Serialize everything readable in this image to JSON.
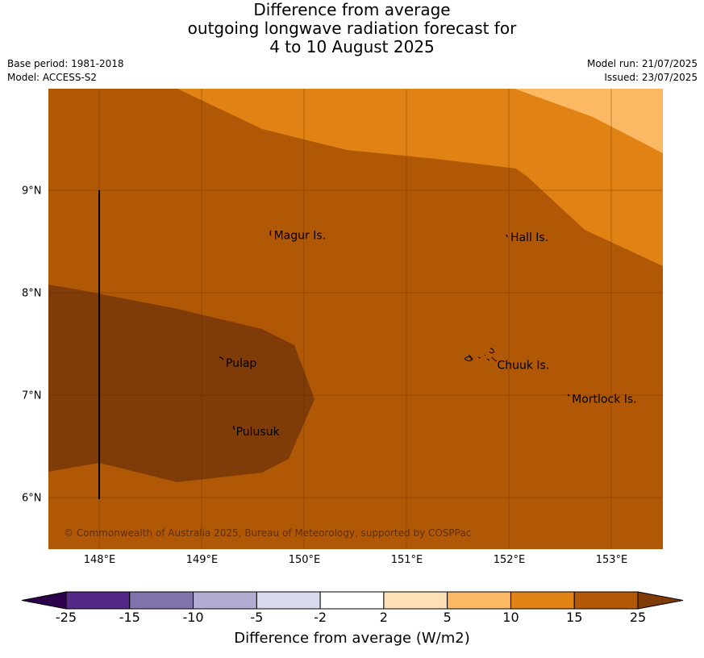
{
  "title": {
    "line1": "Difference from average",
    "line2": "outgoing longwave radiation forecast for",
    "line3": "4 to 10 August 2025"
  },
  "meta": {
    "base_period": "Base period: 1981-2018",
    "model": "Model: ACCESS-S2",
    "model_run": "Model run: 21/07/2025",
    "issued": "Issued: 23/07/2025"
  },
  "map": {
    "lon_range": [
      147.5,
      153.5
    ],
    "lat_range": [
      5.5,
      10.0
    ],
    "x_ticks": [
      "148°E",
      "149°E",
      "150°E",
      "151°E",
      "152°E",
      "153°E"
    ],
    "y_ticks": [
      "9°N",
      "8°N",
      "7°N",
      "6°N"
    ],
    "places": [
      {
        "name": "Magur Is.",
        "lon": 149.67,
        "lat": 8.57
      },
      {
        "name": "Hall Is.",
        "lon": 151.98,
        "lat": 8.55
      },
      {
        "name": "Pulap",
        "lon": 149.2,
        "lat": 7.32
      },
      {
        "name": "Chuuk Is.",
        "lon": 151.85,
        "lat": 7.3
      },
      {
        "name": "Mortlock Is.",
        "lon": 152.58,
        "lat": 6.97
      },
      {
        "name": "Pulusuk",
        "lon": 149.3,
        "lat": 6.65
      }
    ],
    "copyright": "© Commonwealth of Australia 2025, Bureau of Meteorology, supported by COSPPac",
    "colors": {
      "c15_25": "#b15806",
      "c25_plus": "#7f3b08",
      "c10_15": "#e08214",
      "c5_10": "#fdb863"
    }
  },
  "colorbar": {
    "title": "Difference from average (W/m2)",
    "labels": [
      "-25",
      "-15",
      "-10",
      "-5",
      "-2",
      "2",
      "5",
      "10",
      "15",
      "25"
    ],
    "colors": [
      "#542788",
      "#8073ac",
      "#b2abd2",
      "#d8daeb",
      "#ffffff",
      "#fee0b6",
      "#fdb863",
      "#e08214",
      "#b35806"
    ],
    "under_color": "#2d004b",
    "over_color": "#7f3b08"
  }
}
